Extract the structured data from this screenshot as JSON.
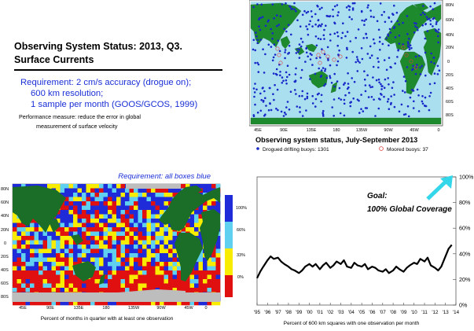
{
  "title": {
    "line1": "Observing System Status:  2013, Q3.",
    "line2": "Surface Currents"
  },
  "requirement": {
    "line1": "Requirement: 2 cm/s accuracy (drogue on);",
    "line2": "600 km resolution;",
    "line3": "1 sample per month (GOOS/GCOS, 1999)"
  },
  "performance": {
    "line1": "Performance measure: reduce the error in global",
    "line2": "measurement of surface velocity"
  },
  "buoy_map": {
    "lat_labels": [
      "80N",
      "60N",
      "40N",
      "20N",
      "0",
      "20S",
      "40S",
      "60S",
      "80S"
    ],
    "lon_labels": [
      "45E",
      "90E",
      "135E",
      "180",
      "135W",
      "90W",
      "45W",
      "0"
    ],
    "title": "Observing system status, July-September 2013",
    "legend": {
      "drifting_label": "Drogued drifting buoys: 1301",
      "moored_label": "Moored buoys: 37"
    },
    "colors": {
      "ocean": "#aadff0",
      "land": "#1e8a2e",
      "drifting": "#1828c8",
      "moored": "#e04040"
    }
  },
  "coverage_map": {
    "requirement_label": "Requirement: all boxes blue",
    "lat_labels": [
      "80N",
      "60N",
      "40N",
      "20N",
      "0",
      "20S",
      "40S",
      "60S",
      "80S"
    ],
    "lon_labels": [
      "45E",
      "90E",
      "135E",
      "180",
      "135W",
      "90W",
      "45W",
      "0"
    ],
    "colorbar_labels": [
      "100%",
      "66%",
      "33%",
      "0%"
    ],
    "colorbar_colors": [
      "#1f2ad8",
      "#5fd0f0",
      "#f8ec00",
      "#e01010"
    ],
    "caption": "Percent of months in quarter with at least one observation",
    "colors": {
      "land": "#1a6e28",
      "ice": "#bdbdbd"
    }
  },
  "chart_data": {
    "type": "line",
    "title": "",
    "xlabel": "Percent of 600 km squares with one observation per month",
    "ylabel": "",
    "x_tick_labels": [
      "'95",
      "'96",
      "'97",
      "'98",
      "'99",
      "'00",
      "'01",
      "'02",
      "'03",
      "'04",
      "'05",
      "'06",
      "'07",
      "'08",
      "'09",
      "'10",
      "'11",
      "'12",
      "'13",
      "'14"
    ],
    "y_tick_labels": [
      "0%",
      "20%",
      "40%",
      "60%",
      "80%",
      "100%"
    ],
    "xlim": [
      1995,
      2014
    ],
    "ylim": [
      0,
      100
    ],
    "goal_line1": "Goal:",
    "goal_line2": "100% Global Coverage",
    "series": [
      {
        "x": [
          1995.0,
          1995.3,
          1995.6,
          1996.0,
          1996.3,
          1996.6,
          1997.0,
          1997.3,
          1997.6,
          1998.0,
          1998.3,
          1998.6,
          1999.0,
          1999.3,
          1999.6,
          2000.0,
          2000.3,
          2000.6,
          2001.0,
          2001.3,
          2001.6,
          2002.0,
          2002.3,
          2002.6,
          2003.0,
          2003.3,
          2003.6,
          2004.0,
          2004.3,
          2004.6,
          2005.0,
          2005.3,
          2005.6,
          2006.0,
          2006.3,
          2006.6,
          2007.0,
          2007.3,
          2007.6,
          2008.0,
          2008.3,
          2008.6,
          2009.0,
          2009.3,
          2009.6,
          2010.0,
          2010.3,
          2010.6,
          2011.0,
          2011.3,
          2011.6,
          2012.0,
          2012.3,
          2012.6,
          2013.0,
          2013.3,
          2013.6
        ],
        "values": [
          21,
          26,
          30,
          35,
          38,
          36,
          37,
          34,
          32,
          30,
          28,
          27,
          25,
          27,
          30,
          32,
          30,
          32,
          28,
          31,
          33,
          29,
          31,
          34,
          32,
          35,
          30,
          29,
          33,
          31,
          30,
          32,
          28,
          30,
          29,
          27,
          26,
          28,
          25,
          27,
          30,
          28,
          26,
          29,
          31,
          33,
          32,
          36,
          34,
          37,
          31,
          29,
          27,
          30,
          38,
          44,
          47
        ]
      }
    ],
    "grid": false,
    "colors": {
      "line": "#000000",
      "goal_arrow": "#34d6ea"
    }
  }
}
